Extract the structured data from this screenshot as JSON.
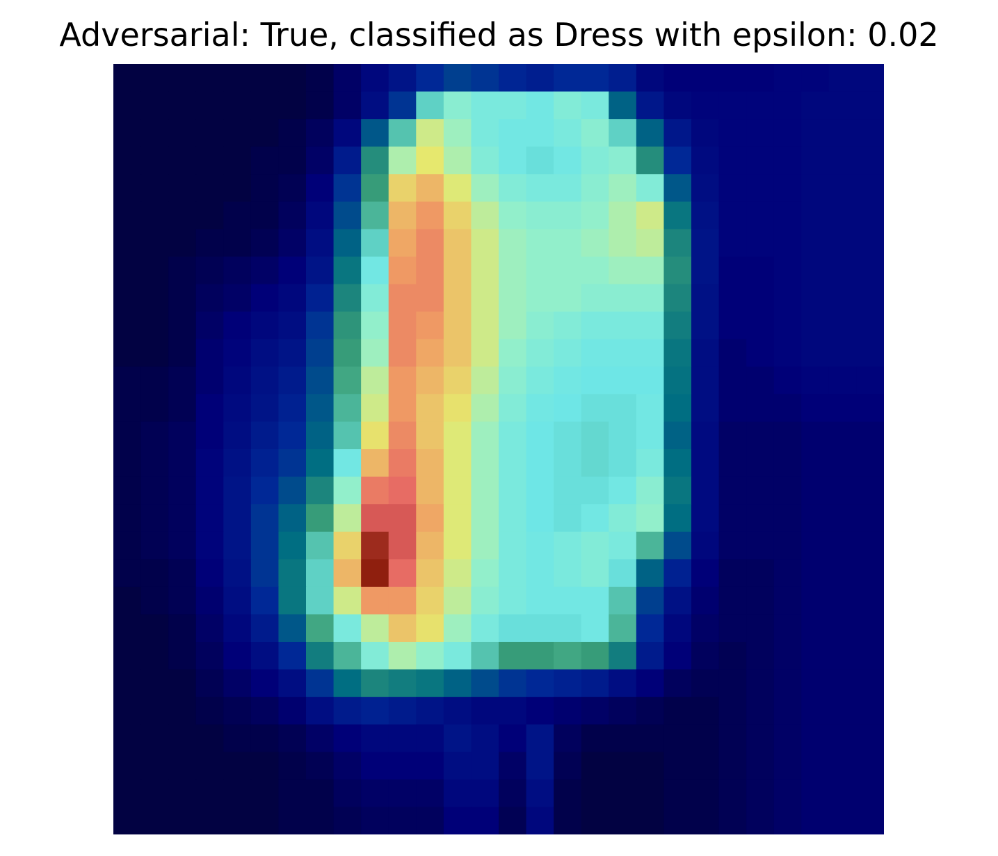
{
  "chart_data": {
    "type": "heatmap",
    "title": "Adversarial: True, classified as Dress with epsilon: 0.02",
    "xlabel": "",
    "ylabel": "",
    "axes_visible": false,
    "grid": false,
    "colormap": "jet (overlay on grayscale image)",
    "rows": 28,
    "cols": 28,
    "value_range": [
      0,
      1
    ],
    "values": [
      [
        0.02,
        0.02,
        0.02,
        0.02,
        0.02,
        0.02,
        0.02,
        0.03,
        0.06,
        0.1,
        0.14,
        0.2,
        0.24,
        0.22,
        0.19,
        0.17,
        0.2,
        0.2,
        0.17,
        0.1,
        0.08,
        0.08,
        0.08,
        0.08,
        0.09,
        0.09,
        0.1,
        0.1
      ],
      [
        0.02,
        0.02,
        0.02,
        0.02,
        0.02,
        0.02,
        0.02,
        0.03,
        0.06,
        0.12,
        0.22,
        0.52,
        0.62,
        0.58,
        0.58,
        0.56,
        0.6,
        0.58,
        0.3,
        0.15,
        0.1,
        0.09,
        0.09,
        0.09,
        0.09,
        0.1,
        0.1,
        0.1
      ],
      [
        0.02,
        0.02,
        0.02,
        0.02,
        0.02,
        0.02,
        0.03,
        0.05,
        0.1,
        0.28,
        0.5,
        0.72,
        0.66,
        0.58,
        0.56,
        0.56,
        0.58,
        0.62,
        0.52,
        0.3,
        0.15,
        0.1,
        0.09,
        0.09,
        0.09,
        0.1,
        0.1,
        0.1
      ],
      [
        0.02,
        0.02,
        0.02,
        0.02,
        0.02,
        0.03,
        0.03,
        0.06,
        0.16,
        0.4,
        0.68,
        0.75,
        0.68,
        0.6,
        0.56,
        0.54,
        0.56,
        0.6,
        0.62,
        0.4,
        0.2,
        0.11,
        0.09,
        0.09,
        0.09,
        0.1,
        0.1,
        0.1
      ],
      [
        0.02,
        0.02,
        0.02,
        0.02,
        0.02,
        0.03,
        0.04,
        0.08,
        0.22,
        0.44,
        0.78,
        0.82,
        0.74,
        0.66,
        0.6,
        0.58,
        0.58,
        0.62,
        0.66,
        0.6,
        0.28,
        0.12,
        0.09,
        0.09,
        0.09,
        0.1,
        0.1,
        0.1
      ],
      [
        0.02,
        0.02,
        0.02,
        0.02,
        0.03,
        0.03,
        0.05,
        0.1,
        0.26,
        0.48,
        0.82,
        0.86,
        0.78,
        0.7,
        0.64,
        0.62,
        0.62,
        0.64,
        0.68,
        0.72,
        0.34,
        0.13,
        0.09,
        0.09,
        0.09,
        0.1,
        0.1,
        0.1
      ],
      [
        0.02,
        0.02,
        0.02,
        0.03,
        0.03,
        0.04,
        0.06,
        0.12,
        0.3,
        0.52,
        0.84,
        0.88,
        0.8,
        0.72,
        0.66,
        0.64,
        0.64,
        0.66,
        0.68,
        0.7,
        0.38,
        0.14,
        0.09,
        0.09,
        0.09,
        0.1,
        0.1,
        0.1
      ],
      [
        0.02,
        0.02,
        0.03,
        0.04,
        0.05,
        0.06,
        0.08,
        0.14,
        0.34,
        0.56,
        0.86,
        0.88,
        0.8,
        0.72,
        0.66,
        0.64,
        0.64,
        0.64,
        0.66,
        0.66,
        0.4,
        0.14,
        0.08,
        0.08,
        0.09,
        0.1,
        0.1,
        0.1
      ],
      [
        0.02,
        0.02,
        0.03,
        0.05,
        0.06,
        0.08,
        0.1,
        0.18,
        0.38,
        0.6,
        0.88,
        0.88,
        0.8,
        0.72,
        0.66,
        0.64,
        0.64,
        0.62,
        0.62,
        0.62,
        0.38,
        0.13,
        0.08,
        0.08,
        0.09,
        0.1,
        0.1,
        0.1
      ],
      [
        0.02,
        0.02,
        0.03,
        0.06,
        0.08,
        0.1,
        0.12,
        0.22,
        0.42,
        0.64,
        0.88,
        0.86,
        0.8,
        0.72,
        0.66,
        0.62,
        0.6,
        0.58,
        0.58,
        0.58,
        0.36,
        0.13,
        0.08,
        0.08,
        0.09,
        0.1,
        0.1,
        0.1
      ],
      [
        0.02,
        0.02,
        0.03,
        0.07,
        0.09,
        0.12,
        0.14,
        0.24,
        0.44,
        0.66,
        0.88,
        0.84,
        0.8,
        0.72,
        0.64,
        0.6,
        0.58,
        0.56,
        0.56,
        0.56,
        0.34,
        0.12,
        0.07,
        0.08,
        0.09,
        0.1,
        0.1,
        0.1
      ],
      [
        0.03,
        0.03,
        0.04,
        0.07,
        0.1,
        0.13,
        0.16,
        0.26,
        0.46,
        0.7,
        0.86,
        0.82,
        0.78,
        0.7,
        0.62,
        0.58,
        0.56,
        0.55,
        0.55,
        0.55,
        0.33,
        0.12,
        0.07,
        0.07,
        0.08,
        0.09,
        0.09,
        0.09
      ],
      [
        0.03,
        0.03,
        0.04,
        0.08,
        0.11,
        0.14,
        0.18,
        0.28,
        0.48,
        0.72,
        0.86,
        0.8,
        0.76,
        0.68,
        0.6,
        0.56,
        0.55,
        0.54,
        0.54,
        0.56,
        0.32,
        0.12,
        0.07,
        0.07,
        0.07,
        0.08,
        0.08,
        0.08
      ],
      [
        0.03,
        0.04,
        0.05,
        0.08,
        0.12,
        0.16,
        0.2,
        0.3,
        0.5,
        0.76,
        0.88,
        0.8,
        0.74,
        0.66,
        0.58,
        0.55,
        0.54,
        0.53,
        0.54,
        0.56,
        0.3,
        0.11,
        0.06,
        0.06,
        0.06,
        0.07,
        0.07,
        0.07
      ],
      [
        0.03,
        0.04,
        0.05,
        0.09,
        0.13,
        0.18,
        0.22,
        0.32,
        0.56,
        0.82,
        0.9,
        0.82,
        0.74,
        0.66,
        0.58,
        0.55,
        0.54,
        0.53,
        0.54,
        0.58,
        0.32,
        0.11,
        0.06,
        0.06,
        0.06,
        0.07,
        0.07,
        0.07
      ],
      [
        0.03,
        0.04,
        0.05,
        0.09,
        0.14,
        0.2,
        0.26,
        0.38,
        0.64,
        0.9,
        0.92,
        0.82,
        0.74,
        0.66,
        0.58,
        0.55,
        0.54,
        0.54,
        0.56,
        0.62,
        0.34,
        0.11,
        0.06,
        0.06,
        0.06,
        0.07,
        0.07,
        0.07
      ],
      [
        0.03,
        0.04,
        0.05,
        0.09,
        0.14,
        0.22,
        0.3,
        0.44,
        0.7,
        0.94,
        0.94,
        0.84,
        0.74,
        0.66,
        0.58,
        0.55,
        0.54,
        0.56,
        0.6,
        0.64,
        0.32,
        0.11,
        0.06,
        0.06,
        0.06,
        0.07,
        0.07,
        0.07
      ],
      [
        0.03,
        0.04,
        0.05,
        0.09,
        0.14,
        0.22,
        0.32,
        0.5,
        0.78,
        0.98,
        0.94,
        0.82,
        0.74,
        0.66,
        0.58,
        0.56,
        0.58,
        0.6,
        0.58,
        0.48,
        0.26,
        0.1,
        0.06,
        0.06,
        0.06,
        0.07,
        0.07,
        0.07
      ],
      [
        0.03,
        0.03,
        0.04,
        0.08,
        0.13,
        0.22,
        0.34,
        0.52,
        0.82,
        0.99,
        0.92,
        0.8,
        0.72,
        0.64,
        0.58,
        0.56,
        0.58,
        0.6,
        0.54,
        0.3,
        0.18,
        0.08,
        0.05,
        0.05,
        0.06,
        0.07,
        0.07,
        0.07
      ],
      [
        0.02,
        0.03,
        0.04,
        0.07,
        0.12,
        0.2,
        0.34,
        0.52,
        0.72,
        0.86,
        0.86,
        0.78,
        0.7,
        0.62,
        0.58,
        0.56,
        0.56,
        0.56,
        0.5,
        0.24,
        0.13,
        0.07,
        0.05,
        0.05,
        0.06,
        0.07,
        0.07,
        0.07
      ],
      [
        0.02,
        0.02,
        0.03,
        0.06,
        0.1,
        0.16,
        0.28,
        0.46,
        0.58,
        0.7,
        0.8,
        0.76,
        0.66,
        0.58,
        0.54,
        0.54,
        0.54,
        0.56,
        0.48,
        0.2,
        0.1,
        0.06,
        0.05,
        0.05,
        0.06,
        0.07,
        0.07,
        0.07
      ],
      [
        0.02,
        0.02,
        0.03,
        0.05,
        0.08,
        0.12,
        0.2,
        0.36,
        0.48,
        0.6,
        0.68,
        0.64,
        0.58,
        0.5,
        0.44,
        0.44,
        0.46,
        0.44,
        0.36,
        0.16,
        0.08,
        0.05,
        0.04,
        0.05,
        0.06,
        0.07,
        0.07,
        0.07
      ],
      [
        0.02,
        0.02,
        0.02,
        0.04,
        0.06,
        0.08,
        0.12,
        0.22,
        0.32,
        0.38,
        0.36,
        0.34,
        0.3,
        0.26,
        0.22,
        0.2,
        0.18,
        0.16,
        0.12,
        0.08,
        0.05,
        0.04,
        0.04,
        0.05,
        0.06,
        0.07,
        0.07,
        0.07
      ],
      [
        0.02,
        0.02,
        0.02,
        0.03,
        0.04,
        0.05,
        0.07,
        0.12,
        0.16,
        0.18,
        0.16,
        0.14,
        0.12,
        0.1,
        0.1,
        0.08,
        0.07,
        0.06,
        0.05,
        0.04,
        0.03,
        0.03,
        0.04,
        0.05,
        0.06,
        0.07,
        0.07,
        0.07
      ],
      [
        0.02,
        0.02,
        0.02,
        0.02,
        0.03,
        0.03,
        0.04,
        0.06,
        0.08,
        0.1,
        0.1,
        0.1,
        0.14,
        0.12,
        0.08,
        0.14,
        0.05,
        0.03,
        0.03,
        0.03,
        0.03,
        0.03,
        0.04,
        0.05,
        0.06,
        0.07,
        0.07,
        0.07
      ],
      [
        0.02,
        0.02,
        0.02,
        0.02,
        0.02,
        0.02,
        0.03,
        0.04,
        0.06,
        0.08,
        0.08,
        0.08,
        0.12,
        0.12,
        0.06,
        0.14,
        0.04,
        0.02,
        0.02,
        0.02,
        0.03,
        0.03,
        0.04,
        0.05,
        0.06,
        0.07,
        0.07,
        0.07
      ],
      [
        0.02,
        0.02,
        0.02,
        0.02,
        0.02,
        0.02,
        0.03,
        0.03,
        0.05,
        0.06,
        0.06,
        0.06,
        0.1,
        0.1,
        0.05,
        0.12,
        0.03,
        0.02,
        0.02,
        0.02,
        0.03,
        0.03,
        0.04,
        0.05,
        0.06,
        0.07,
        0.07,
        0.07
      ],
      [
        0.02,
        0.02,
        0.02,
        0.02,
        0.02,
        0.02,
        0.03,
        0.03,
        0.04,
        0.05,
        0.05,
        0.05,
        0.08,
        0.08,
        0.04,
        0.1,
        0.03,
        0.02,
        0.02,
        0.02,
        0.03,
        0.03,
        0.04,
        0.05,
        0.06,
        0.07,
        0.07,
        0.07
      ]
    ]
  }
}
